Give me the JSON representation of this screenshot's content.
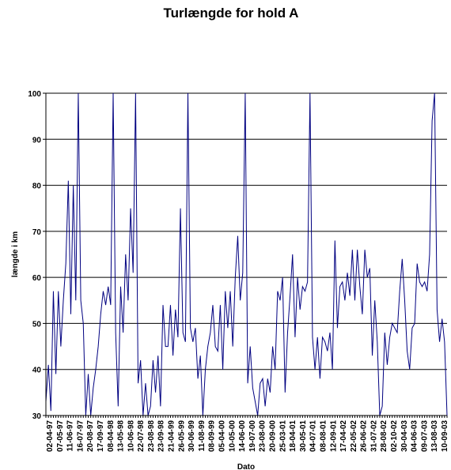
{
  "chart_data": {
    "type": "line",
    "title": "Turlængde for hold A",
    "xlabel": "Dato",
    "ylabel": "længde i km",
    "ylim": [
      30,
      100
    ],
    "yticks": [
      30,
      40,
      50,
      60,
      70,
      80,
      90,
      100
    ],
    "grid": true,
    "legend": "none",
    "colors": {
      "line": "#000080",
      "grid": "#000000",
      "background": "#ffffff"
    },
    "x_tick_labels": [
      "02-04-97",
      "07-05-97",
      "11-06-97",
      "16-07-97",
      "20-08-97",
      "17-09-97",
      "08-04-98",
      "13-05-98",
      "10-06-98",
      "22-07-98",
      "23-08-98",
      "23-09-98",
      "21-04-99",
      "26-05-99",
      "30-06-99",
      "11-08-99",
      "08-09-99",
      "05-04-00",
      "10-05-00",
      "14-06-00",
      "19-07-00",
      "23-08-00",
      "20-09-00",
      "25-03-01",
      "18-04-01",
      "30-05-01",
      "04-07-01",
      "08-08-01",
      "12-09-01",
      "17-04-02",
      "22-05-02",
      "26-06-02",
      "31-07-02",
      "28-08-02",
      "02-10-02",
      "30-04-03",
      "04-06-03",
      "09-07-03",
      "13-08-03",
      "10-09-03"
    ],
    "series": [
      {
        "values": [
          33,
          41,
          31,
          57,
          39,
          57,
          45,
          55,
          63,
          81,
          52,
          80,
          55,
          100,
          55,
          50,
          30,
          39,
          30,
          36,
          40,
          45,
          52,
          57,
          54,
          58,
          54,
          100,
          48,
          32,
          58,
          48,
          65,
          55,
          75,
          61,
          100,
          37,
          42,
          30,
          37,
          30,
          32,
          42,
          35,
          43,
          32,
          54,
          45,
          45,
          54,
          43,
          53,
          47,
          75,
          48,
          46,
          100,
          49,
          46,
          49,
          38,
          43,
          30,
          40,
          45,
          48,
          54,
          45,
          44,
          54,
          40,
          57,
          49,
          57,
          45,
          60,
          69,
          55,
          61,
          100,
          37,
          45,
          36,
          33,
          30,
          37,
          38,
          32,
          38,
          35,
          45,
          40,
          57,
          55,
          60,
          35,
          48,
          56,
          65,
          47,
          60,
          53,
          58,
          57,
          59,
          100,
          47,
          40,
          47,
          38,
          47,
          46,
          44,
          48,
          40,
          68,
          49,
          58,
          59,
          55,
          61,
          56,
          66,
          55,
          66,
          58,
          52,
          66,
          60,
          62,
          43,
          55,
          46,
          30,
          32,
          48,
          41,
          47,
          50,
          49,
          48,
          57,
          64,
          55,
          44,
          40,
          49,
          50,
          63,
          59,
          58,
          59,
          57,
          65,
          94,
          100,
          53,
          46,
          51,
          46,
          30
        ]
      }
    ]
  }
}
